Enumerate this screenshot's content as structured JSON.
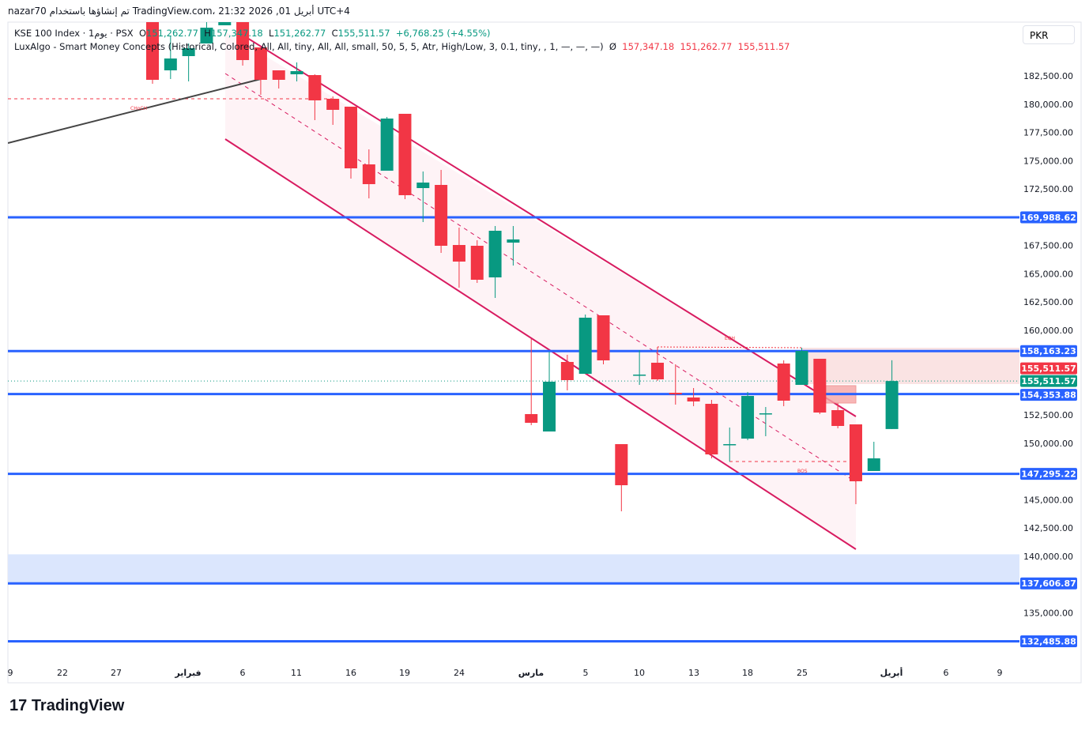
{
  "header": {
    "attribution": "nazar70 تم إنشاؤها باستخدام TradingView.com، 21:32 2026 ,01 أبريل UTC+4"
  },
  "legend": {
    "symbol": "KSE 100 Index · 1يوم · PSX",
    "open_label": "O",
    "open": "151,262.77",
    "high_label": "H",
    "high": "157,347.18",
    "low_label": "L",
    "low": "151,262.77",
    "close_label": "C",
    "close": "155,511.57",
    "change": "+6,768.25 (+4.55%)",
    "indicator": "LuxAlgo - Smart Money Concepts (Historical, Colored, All, All, tiny, All, All, small, 50, 5, 5, Atr, High/Low, 3, 0.1, tiny, , 1, —, —, —)",
    "indicator_symbol": "Ø",
    "indicator_values": [
      "157,347.18",
      "151,262.77",
      "155,511.57"
    ]
  },
  "currency": "PKR",
  "logo": "TradingView",
  "colors": {
    "up": "#089981",
    "down": "#f23645",
    "level": "#2962ff",
    "channel": "#d81b60",
    "zone": "#dbe6fd"
  },
  "chart_data": {
    "type": "candlestick",
    "ylim": [
      131000,
      187500
    ],
    "y_ticks": [
      135000,
      137500,
      140000,
      142500,
      145000,
      147500,
      150000,
      152500,
      155000,
      157500,
      160000,
      162500,
      165000,
      167500,
      170000,
      172500,
      175000,
      177500,
      180000,
      182500,
      185000
    ],
    "x_tick_labels": [
      "9",
      "22",
      "27",
      "فبراير",
      "6",
      "11",
      "16",
      "19",
      "24",
      "مارس",
      "5",
      "10",
      "13",
      "18",
      "25",
      "أبريل",
      "6",
      "9"
    ],
    "candles": [
      [
        187469,
        187679,
        181806,
        182156
      ],
      [
        182994,
        186071,
        182225,
        184043
      ],
      [
        184253,
        185371,
        182016,
        184952
      ],
      [
        185371,
        187329,
        null,
        186770
      ],
      [
        186980,
        187329,
        186980,
        187329
      ],
      [
        187329,
        187329,
        183414,
        183903
      ],
      [
        185022,
        185022,
        180827,
        182156
      ],
      [
        182994,
        182994,
        181387,
        182156
      ],
      [
        182645,
        183694,
        182016,
        182925
      ],
      [
        182575,
        182645,
        178590,
        180338
      ],
      [
        180478,
        180688,
        178171,
        179499
      ],
      [
        179779,
        179779,
        173417,
        174326
      ],
      [
        174675,
        176004,
        171669,
        172927
      ],
      [
        174116,
        178870,
        174116,
        178730
      ],
      [
        179150,
        179150,
        171599,
        171949
      ],
      [
        172578,
        174046,
        169572,
        173067
      ],
      [
        172858,
        174186,
        166845,
        167475
      ],
      [
        167544,
        169083,
        163769,
        166076
      ],
      [
        167475,
        167964,
        164189,
        164469
      ],
      [
        164678,
        169222,
        162861,
        168803
      ],
      [
        167754,
        169222,
        165727,
        168034
      ],
      [
        152584,
        159225,
        151605,
        151815
      ],
      [
        151046,
        158107,
        151046,
        155450
      ],
      [
        157198,
        157828,
        154681,
        155590
      ],
      [
        156150,
        161392,
        156150,
        161113
      ],
      [
        161323,
        161323,
        156988,
        157338
      ],
      [
        149927,
        149927,
        143985,
        146292
      ],
      [
        156080,
        158247,
        155170,
        156080
      ],
      [
        157128,
        158526,
        155520,
        155660
      ],
      [
        154471,
        156988,
        153423,
        154331
      ],
      [
        154052,
        154891,
        153283,
        153702
      ],
      [
        153493,
        153842,
        148669,
        149018
      ],
      [
        149927,
        151395,
        148389,
        149927
      ],
      [
        150417,
        154541,
        150277,
        154191
      ],
      [
        152654,
        153213,
        150626,
        152654
      ],
      [
        157058,
        157338,
        153283,
        153772
      ],
      [
        155170,
        158456,
        155170,
        158177
      ],
      [
        157478,
        157478,
        152584,
        152724
      ],
      [
        152933,
        153563,
        151325,
        151535
      ],
      [
        151675,
        151675,
        144614,
        146641
      ],
      [
        147550,
        150137,
        147550,
        148669
      ],
      [
        151262.77,
        157347.18,
        151262.77,
        155511.57
      ]
    ],
    "levels": [
      169988.62,
      158163.23,
      154353.88,
      147295.22,
      137606.87,
      132485.88
    ],
    "last_price": 155511.57,
    "annotations": [
      "CHoCH",
      "EQH",
      "BOS"
    ]
  }
}
